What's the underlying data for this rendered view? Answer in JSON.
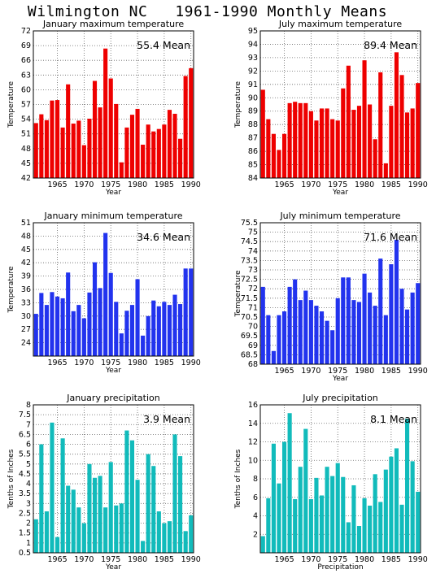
{
  "page_title": "Wilmington NC   1961-1990 Monthly Means",
  "chart_data": [
    {
      "type": "bar",
      "title": "January maximum temperature",
      "annotation": "55.4 Mean",
      "xlabel": "Year",
      "ylabel": "Temperature",
      "color": "#ee0000",
      "ylim": [
        42,
        72
      ],
      "yticks": [
        "42",
        "45",
        "48",
        "51",
        "54",
        "57",
        "60",
        "63",
        "66",
        "69",
        "72"
      ],
      "xticks": [
        "1965",
        "1970",
        "1975",
        "1980",
        "1985",
        "1990"
      ],
      "x": [
        1961,
        1962,
        1963,
        1964,
        1965,
        1966,
        1967,
        1968,
        1969,
        1970,
        1971,
        1972,
        1973,
        1974,
        1975,
        1976,
        1977,
        1978,
        1979,
        1980,
        1981,
        1982,
        1983,
        1984,
        1985,
        1986,
        1987,
        1988,
        1989,
        1990
      ],
      "values": [
        53.2,
        55.0,
        53.8,
        57.8,
        57.9,
        52.3,
        61.1,
        53.1,
        53.7,
        48.7,
        54.1,
        61.8,
        56.4,
        68.4,
        62.3,
        57.1,
        45.2,
        52.3,
        54.9,
        56.1,
        48.8,
        52.9,
        51.5,
        52.0,
        52.9,
        55.9,
        55.1,
        50.0,
        62.8,
        64.4
      ]
    },
    {
      "type": "bar",
      "title": "July maximum temperature",
      "annotation": "89.4 Mean",
      "xlabel": "Year",
      "ylabel": "Temperature",
      "color": "#ee0000",
      "ylim": [
        84,
        95
      ],
      "yticks": [
        "84",
        "85",
        "86",
        "87",
        "88",
        "89",
        "90",
        "91",
        "92",
        "93",
        "94",
        "95"
      ],
      "xticks": [
        "1965",
        "1970",
        "1975",
        "1980",
        "1985",
        "1990"
      ],
      "x": [
        1961,
        1962,
        1963,
        1964,
        1965,
        1966,
        1967,
        1968,
        1969,
        1970,
        1971,
        1972,
        1973,
        1974,
        1975,
        1976,
        1977,
        1978,
        1979,
        1980,
        1981,
        1982,
        1983,
        1984,
        1985,
        1986,
        1987,
        1988,
        1989,
        1990
      ],
      "values": [
        90.6,
        88.4,
        87.3,
        86.1,
        87.3,
        89.6,
        89.7,
        89.6,
        89.6,
        89.0,
        88.3,
        89.2,
        89.2,
        88.4,
        88.3,
        90.7,
        92.4,
        89.1,
        89.4,
        92.8,
        89.5,
        86.9,
        91.9,
        85.1,
        89.4,
        93.4,
        91.7,
        88.9,
        89.2,
        91.1
      ]
    },
    {
      "type": "bar",
      "title": "January minimum temperature",
      "annotation": "34.6 Mean",
      "xlabel": "Year",
      "ylabel": "Temperature",
      "color": "#2233ee",
      "ylim": [
        21,
        51
      ],
      "yticks": [
        "24",
        "27",
        "30",
        "33",
        "36",
        "39",
        "42",
        "45",
        "48",
        "51"
      ],
      "xticks": [
        "1965",
        "1970",
        "1975",
        "1980",
        "1985",
        "1990"
      ],
      "x": [
        1961,
        1962,
        1963,
        1964,
        1965,
        1966,
        1967,
        1968,
        1969,
        1970,
        1971,
        1972,
        1973,
        1974,
        1975,
        1976,
        1977,
        1978,
        1979,
        1980,
        1981,
        1982,
        1983,
        1984,
        1985,
        1986,
        1987,
        1988,
        1989,
        1990
      ],
      "values": [
        30.5,
        35.2,
        32.5,
        35.4,
        34.4,
        34.0,
        39.8,
        31.1,
        32.5,
        29.5,
        35.3,
        42.1,
        36.3,
        48.7,
        39.7,
        33.2,
        26.1,
        31.2,
        32.5,
        38.3,
        25.6,
        30.0,
        33.5,
        32.2,
        33.2,
        32.5,
        34.8,
        32.7,
        40.7,
        40.7
      ]
    },
    {
      "type": "bar",
      "title": "July minimum temperature",
      "annotation": "71.6 Mean",
      "xlabel": "Year",
      "ylabel": "Temperature",
      "color": "#2233ee",
      "ylim": [
        68,
        75.5
      ],
      "yticks": [
        "68",
        "68.5",
        "69",
        "69.5",
        "70",
        "70.5",
        "71",
        "71.5",
        "72",
        "72.5",
        "73",
        "73.5",
        "74",
        "74.5",
        "75",
        "75.5"
      ],
      "xticks": [
        "1965",
        "1970",
        "1975",
        "1980",
        "1985",
        "1990"
      ],
      "x": [
        1961,
        1962,
        1963,
        1964,
        1965,
        1966,
        1967,
        1968,
        1969,
        1970,
        1971,
        1972,
        1973,
        1974,
        1975,
        1976,
        1977,
        1978,
        1979,
        1980,
        1981,
        1982,
        1983,
        1984,
        1985,
        1986,
        1987,
        1988,
        1989,
        1990
      ],
      "values": [
        72.1,
        70.6,
        68.7,
        70.6,
        70.8,
        72.1,
        72.5,
        71.4,
        71.9,
        71.4,
        71.1,
        70.8,
        70.3,
        69.8,
        71.5,
        72.6,
        72.6,
        71.4,
        71.3,
        72.8,
        71.8,
        71.1,
        73.6,
        70.6,
        73.3,
        74.6,
        72.0,
        70.9,
        71.8,
        72.3
      ]
    },
    {
      "type": "bar",
      "title": "January precipitation",
      "annotation": "3.9 Mean",
      "xlabel": "Year",
      "ylabel": "Tenths of Inches",
      "color": "#11bbbb",
      "ylim": [
        0.5,
        8
      ],
      "yticks": [
        "0.5",
        "1",
        "1.5",
        "2",
        "2.5",
        "3",
        "3.5",
        "4",
        "4.5",
        "5",
        "5.5",
        "6",
        "6.5",
        "7",
        "7.5",
        "8"
      ],
      "xticks": [
        "1965",
        "1970",
        "1975",
        "1980",
        "1985",
        "1990"
      ],
      "x": [
        1961,
        1962,
        1963,
        1964,
        1965,
        1966,
        1967,
        1968,
        1969,
        1970,
        1971,
        1972,
        1973,
        1974,
        1975,
        1976,
        1977,
        1978,
        1979,
        1980,
        1981,
        1982,
        1983,
        1984,
        1985,
        1986,
        1987,
        1988,
        1989,
        1990
      ],
      "values": [
        2.2,
        6.0,
        2.6,
        7.1,
        1.3,
        6.3,
        3.9,
        3.7,
        2.8,
        2.0,
        5.0,
        4.3,
        4.4,
        2.8,
        5.1,
        2.9,
        3.0,
        6.7,
        6.2,
        4.2,
        1.1,
        5.5,
        4.9,
        2.6,
        2.0,
        2.1,
        6.5,
        5.4,
        1.6,
        2.4
      ]
    },
    {
      "type": "bar",
      "title": "July precipitation",
      "annotation": "8.1 Mean",
      "xlabel": "Precipitation",
      "ylabel": "Tenths of Inches",
      "color": "#11bbbb",
      "ylim": [
        0,
        16
      ],
      "yticks": [
        "2",
        "4",
        "6",
        "8",
        "10",
        "12",
        "14",
        "16"
      ],
      "xticks": [
        "1965",
        "1970",
        "1975",
        "1980",
        "1985",
        "1990"
      ],
      "x": [
        1961,
        1962,
        1963,
        1964,
        1965,
        1966,
        1967,
        1968,
        1969,
        1970,
        1971,
        1972,
        1973,
        1974,
        1975,
        1976,
        1977,
        1978,
        1979,
        1980,
        1981,
        1982,
        1983,
        1984,
        1985,
        1986,
        1987,
        1988,
        1989,
        1990
      ],
      "values": [
        1.8,
        5.9,
        11.8,
        7.5,
        12.0,
        15.1,
        5.8,
        9.3,
        13.4,
        5.8,
        8.1,
        6.2,
        9.3,
        8.3,
        9.7,
        8.2,
        3.3,
        7.3,
        2.9,
        5.9,
        5.1,
        8.5,
        5.5,
        9.0,
        10.4,
        11.3,
        5.2,
        14.5,
        9.9,
        6.6
      ]
    }
  ]
}
